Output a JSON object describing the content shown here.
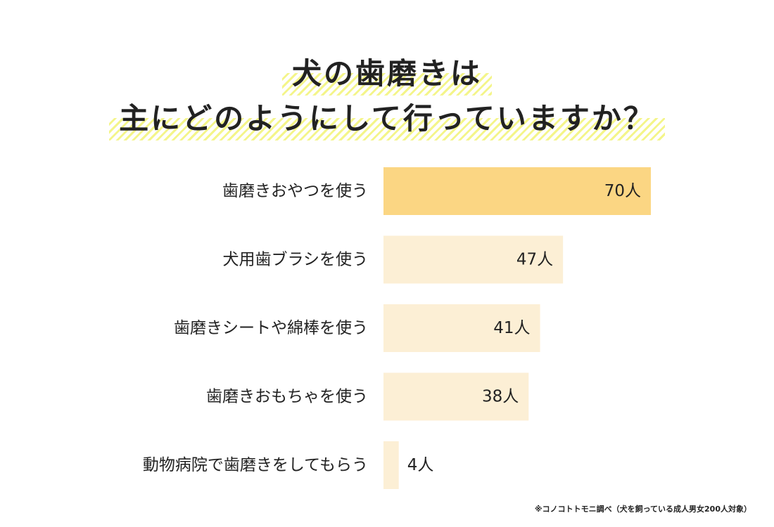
{
  "title": {
    "line1": "犬の歯磨きは",
    "line2": "主にどのようにして行っていますか？"
  },
  "chart_data": {
    "type": "bar",
    "orientation": "horizontal",
    "categories": [
      "歯磨きおやつを使う",
      "犬用歯ブラシを使う",
      "歯磨きシートや綿棒を使う",
      "歯磨きおもちゃを使う",
      "動物病院で歯磨きをしてもらう"
    ],
    "values": [
      70,
      47,
      41,
      38,
      4
    ],
    "value_labels": [
      "70人",
      "47人",
      "41人",
      "38人",
      "4人"
    ],
    "unit": "人",
    "xlim": [
      0,
      70
    ],
    "grid": false,
    "legend": "none",
    "colors": {
      "highlight": "#fbd683",
      "normal": "#fcefd5"
    },
    "highlight_index": 0
  },
  "footnote": "※コノコトトモニ調べ（犬を飼っている成人男女200人対象）"
}
